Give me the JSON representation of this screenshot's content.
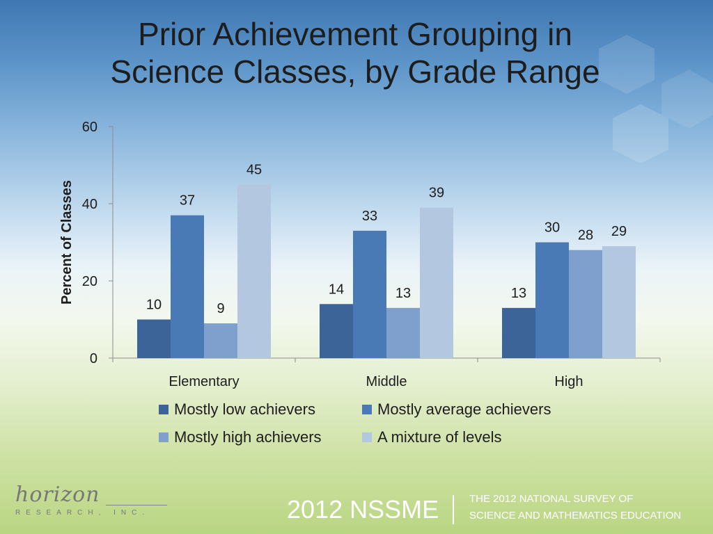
{
  "title": {
    "line1": "Prior Achievement Grouping in",
    "line2": "Science Classes, by Grade Range"
  },
  "chart_data": {
    "type": "bar",
    "categories": [
      "Elementary",
      "Middle",
      "High"
    ],
    "series": [
      {
        "name": "Mostly low achievers",
        "values": [
          10,
          14,
          13
        ],
        "color": "#3c6498"
      },
      {
        "name": "Mostly average achievers",
        "values": [
          37,
          33,
          30
        ],
        "color": "#4a7ab6"
      },
      {
        "name": "Mostly high achievers",
        "values": [
          9,
          13,
          28
        ],
        "color": "#7f9fcc"
      },
      {
        "name": "A mixture of levels",
        "values": [
          45,
          39,
          29
        ],
        "color": "#b4c7e0"
      }
    ],
    "ylabel": "Percent of Classes",
    "xlabel": "",
    "ylim": [
      0,
      60
    ],
    "yticks": [
      0,
      20,
      40,
      60
    ],
    "legend_position": "bottom",
    "grid": false
  },
  "footer": {
    "logo_name": "horizon",
    "logo_sub": "RESEARCH, INC.",
    "brand": "2012 NSSME",
    "survey_line1": "THE 2012 NATIONAL SURVEY OF",
    "survey_line2": "SCIENCE AND MATHEMATICS EDUCATION"
  }
}
